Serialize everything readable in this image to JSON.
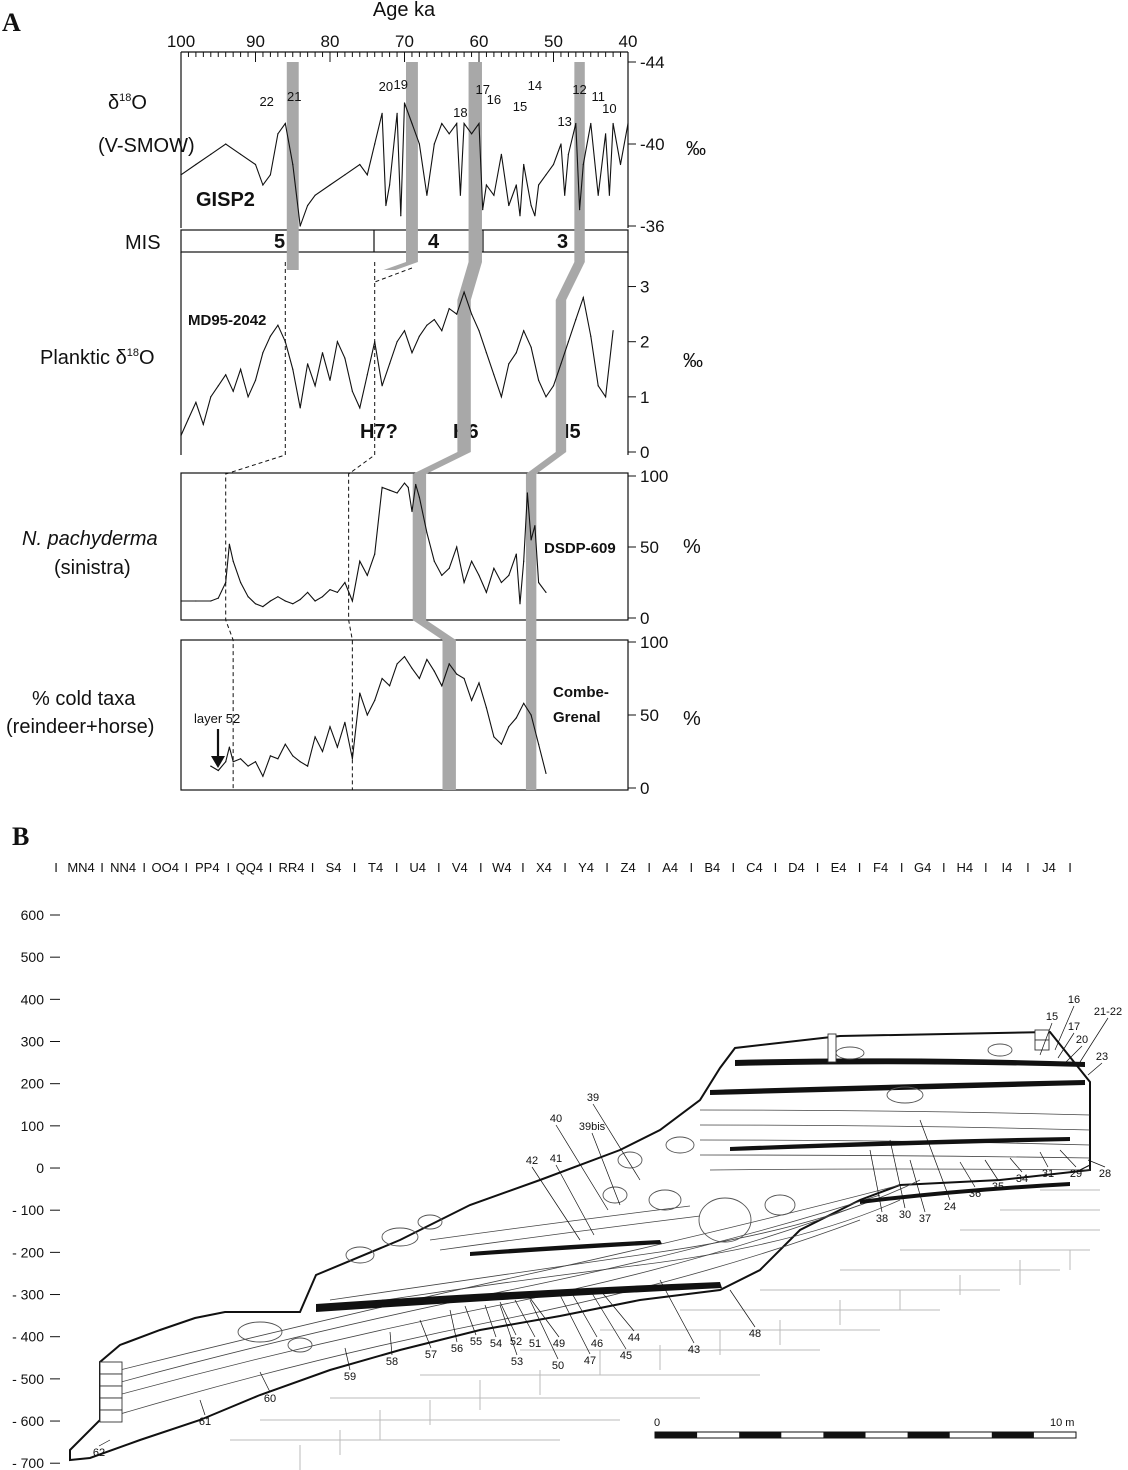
{
  "panel_a": {
    "letter": "A",
    "top_axis": {
      "label": "Age ka",
      "ticks": [
        "100",
        "90",
        "80",
        "70",
        "60",
        "50",
        "40"
      ]
    },
    "gisp2": {
      "ylabel_line1": "δ",
      "ylabel_sup": "18",
      "ylabel_o": "O",
      "ylabel_line2": "(V-SMOW)",
      "name": "GISP2",
      "right_ticks": [
        "-36",
        "-40",
        "-44"
      ],
      "unit": "‰",
      "events": [
        {
          "n": "22",
          "age": 88.5
        },
        {
          "n": "21",
          "age": 84.8
        },
        {
          "n": "20",
          "age": 72.5
        },
        {
          "n": "19",
          "age": 70.5
        },
        {
          "n": "18",
          "age": 62.5
        },
        {
          "n": "17",
          "age": 59.5
        },
        {
          "n": "16",
          "age": 58
        },
        {
          "n": "15",
          "age": 54.5
        },
        {
          "n": "14",
          "age": 52.5
        },
        {
          "n": "13",
          "age": 48.5
        },
        {
          "n": "12",
          "age": 46.5
        },
        {
          "n": "11",
          "age": 44
        },
        {
          "n": "10",
          "age": 42.5
        }
      ]
    },
    "mis": {
      "label": "MIS",
      "stages": [
        "5",
        "4",
        "3"
      ]
    },
    "md95": {
      "ylabel": "Planktic  δ",
      "ylabel_sup": "18",
      "ylabel_o": "O",
      "name": "MD95-2042",
      "right_ticks": [
        "3",
        "2",
        "1",
        "0"
      ],
      "unit": "‰",
      "heinrich": [
        "H7?",
        "H6",
        "H5"
      ]
    },
    "dsdp": {
      "ylabel_line1": "N. pachyderma",
      "ylabel_line2": "(sinistra)",
      "name": "DSDP-609",
      "right_ticks": [
        "100",
        "50",
        "0"
      ],
      "unit": "%"
    },
    "combe": {
      "ylabel_line1": "% cold taxa",
      "ylabel_line2": "(reindeer+horse)",
      "name_line1": "Combe-",
      "name_line2": "Grenal",
      "right_ticks": [
        "100",
        "50",
        "0"
      ],
      "unit": "%",
      "annotation": "layer 52"
    }
  },
  "panel_b": {
    "letter": "B",
    "grid_columns": [
      "MN4",
      "NN4",
      "OO4",
      "PP4",
      "QQ4",
      "RR4",
      "S4",
      "T4",
      "U4",
      "V4",
      "W4",
      "X4",
      "Y4",
      "Z4",
      "A4",
      "B4",
      "C4",
      "D4",
      "E4",
      "F4",
      "G4",
      "H4",
      "I4",
      "J4"
    ],
    "depth_ticks": [
      "600",
      "500",
      "400",
      "300",
      "200",
      "100",
      "0",
      "- 100",
      "- 200",
      "- 300",
      "- 400",
      "- 500",
      "- 600",
      "- 700"
    ],
    "layer_labels": [
      "16",
      "15",
      "17",
      "21-22",
      "20",
      "23",
      "39",
      "40",
      "39bis",
      "42",
      "41",
      "28",
      "29",
      "31",
      "34",
      "35",
      "36",
      "24",
      "37",
      "30",
      "38",
      "48",
      "43",
      "44",
      "45",
      "46",
      "47",
      "49",
      "50",
      "51",
      "52",
      "53",
      "54",
      "55",
      "56",
      "57",
      "58",
      "59",
      "60",
      "61",
      "62"
    ],
    "scale": {
      "start": "0",
      "end": "10 m"
    }
  },
  "chart_data": [
    {
      "type": "line",
      "title": "GISP2",
      "xlabel": "Age ka",
      "ylabel": "δ18O (V-SMOW) ‰",
      "xlim": [
        100,
        40
      ],
      "ylim": [
        -44,
        -36
      ],
      "y_inverted": true,
      "series": [
        {
          "name": "GISP2",
          "x": [
            100,
            98,
            96,
            94,
            92,
            90,
            89,
            88,
            87,
            86,
            85,
            84,
            83,
            82,
            80,
            78,
            76,
            75,
            74,
            73,
            72.5,
            72,
            71,
            70.5,
            70,
            69,
            68,
            67,
            66,
            65,
            64,
            63,
            62.5,
            62,
            61,
            60,
            59.5,
            59,
            58,
            57,
            56,
            55,
            54.5,
            54,
            53,
            52.5,
            52,
            51,
            50,
            49,
            48.5,
            48,
            47,
            46.5,
            46,
            45,
            44,
            43,
            42.5,
            42,
            41,
            40
          ],
          "y": [
            -38.5,
            -39,
            -39.5,
            -40,
            -39.5,
            -39,
            -38,
            -38.5,
            -40.5,
            -41,
            -39,
            -36,
            -37,
            -37.5,
            -38,
            -38.5,
            -39,
            -38.5,
            -40,
            -41.5,
            -37,
            -38,
            -41.5,
            -36.5,
            -42,
            -41,
            -40,
            -37.5,
            -40,
            -41,
            -40.5,
            -41,
            -37.5,
            -41,
            -40.5,
            -41,
            -36.8,
            -38,
            -37.5,
            -39.5,
            -37,
            -38,
            -36.5,
            -39,
            -37,
            -36.5,
            -38,
            -38.5,
            -39,
            -40,
            -37.5,
            -39.5,
            -41,
            -36.8,
            -39,
            -41,
            -37.5,
            -40.5,
            -37.5,
            -41,
            -39,
            -41
          ]
        }
      ]
    },
    {
      "type": "line",
      "title": "MD95-2042",
      "xlabel": "Age ka",
      "ylabel": "Planktic δ18O ‰",
      "xlim": [
        100,
        40
      ],
      "ylim": [
        0,
        3.3
      ],
      "series": [
        {
          "name": "MD95-2042",
          "x": [
            100,
            99,
            98,
            97,
            96,
            95,
            94,
            93,
            92,
            91,
            90,
            89,
            88,
            87,
            86,
            85,
            84,
            83,
            82,
            81,
            80,
            79,
            78,
            77,
            76,
            75,
            74,
            73,
            72,
            71,
            70,
            69,
            68,
            67,
            66,
            65,
            64,
            63,
            62,
            61,
            60,
            59,
            58,
            57,
            56,
            55,
            54,
            53,
            52,
            51,
            50,
            49,
            48,
            47,
            46,
            45,
            44,
            43,
            42
          ],
          "y": [
            0.3,
            0.6,
            0.9,
            0.5,
            1.0,
            1.2,
            1.4,
            1.1,
            1.5,
            1.0,
            1.3,
            1.8,
            2.1,
            2.3,
            2.0,
            1.5,
            0.8,
            1.6,
            1.2,
            1.8,
            1.3,
            2.0,
            1.7,
            1.1,
            0.8,
            1.4,
            2.0,
            1.2,
            1.6,
            2.0,
            2.2,
            1.8,
            2.1,
            2.3,
            2.4,
            2.2,
            2.6,
            2.5,
            2.9,
            2.5,
            2.2,
            1.8,
            1.4,
            1.0,
            1.6,
            1.8,
            2.2,
            1.9,
            1.3,
            1.0,
            1.2,
            1.6,
            2.0,
            2.4,
            2.8,
            2.1,
            1.2,
            1.0,
            2.2
          ]
        }
      ]
    },
    {
      "type": "line",
      "title": "DSDP-609",
      "xlabel": "Age ka",
      "ylabel": "N. pachyderma (sinistra) %",
      "xlim": [
        100,
        40
      ],
      "ylim": [
        0,
        100
      ],
      "series": [
        {
          "name": "DSDP-609",
          "x": [
            100,
            98,
            96,
            95,
            94,
            93.5,
            93,
            92,
            91,
            90,
            89,
            88,
            87,
            86,
            85,
            84,
            83,
            82,
            81,
            80,
            79,
            78,
            77,
            76,
            75,
            74,
            73,
            72,
            71,
            70,
            69.5,
            69,
            68.5,
            68,
            67,
            66,
            65,
            64,
            63,
            62,
            61,
            60,
            59,
            58,
            57,
            56,
            55,
            54.5,
            54,
            53.5,
            53,
            52.5,
            52,
            51
          ],
          "y": [
            12,
            12,
            12,
            14,
            25,
            52,
            40,
            25,
            15,
            10,
            8,
            12,
            15,
            12,
            10,
            13,
            18,
            12,
            15,
            20,
            18,
            25,
            12,
            40,
            30,
            45,
            92,
            90,
            88,
            95,
            92,
            75,
            94,
            85,
            60,
            40,
            30,
            35,
            50,
            25,
            40,
            30,
            18,
            35,
            25,
            30,
            45,
            10,
            40,
            88,
            55,
            65,
            25,
            18
          ]
        }
      ]
    },
    {
      "type": "line",
      "title": "Combe-Grenal",
      "xlabel": "Age ka",
      "ylabel": "% cold taxa (reindeer+horse) %",
      "xlim": [
        100,
        40
      ],
      "ylim": [
        0,
        100
      ],
      "series": [
        {
          "name": "Combe-Grenal",
          "x": [
            96,
            95,
            94,
            93.5,
            93,
            92,
            91,
            90,
            89,
            88,
            87,
            86,
            85,
            84,
            83,
            82,
            81,
            80,
            79,
            78,
            77,
            76,
            75,
            74,
            73,
            72,
            71,
            70,
            69,
            68,
            67,
            66,
            65,
            64,
            63,
            62,
            61,
            60,
            59,
            58,
            57,
            56,
            55,
            54,
            53,
            52,
            51
          ],
          "y": [
            15,
            12,
            18,
            28,
            18,
            20,
            15,
            18,
            8,
            22,
            20,
            30,
            22,
            18,
            15,
            35,
            25,
            42,
            28,
            45,
            20,
            65,
            50,
            60,
            75,
            70,
            85,
            90,
            82,
            75,
            88,
            80,
            70,
            85,
            78,
            75,
            60,
            72,
            55,
            35,
            30,
            42,
            48,
            58,
            50,
            30,
            10
          ]
        }
      ]
    }
  ]
}
